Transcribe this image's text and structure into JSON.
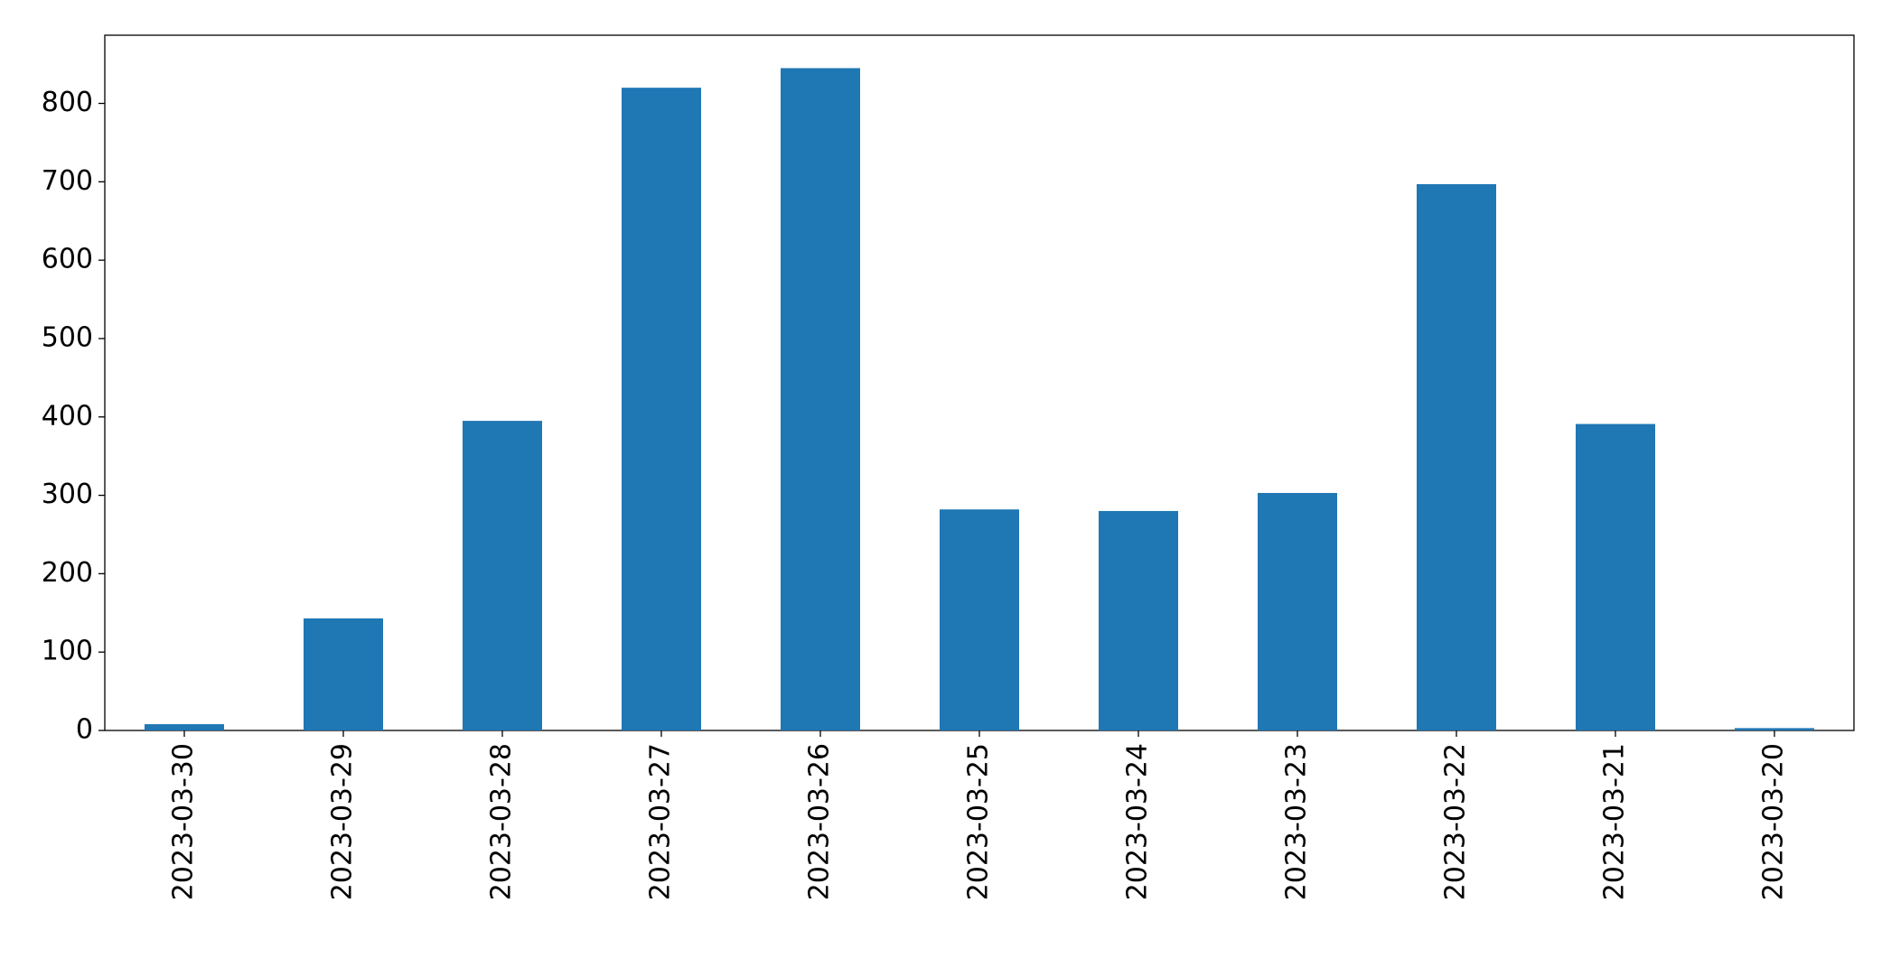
{
  "chart_data": {
    "type": "bar",
    "categories": [
      "2023-03-30",
      "2023-03-29",
      "2023-03-28",
      "2023-03-27",
      "2023-03-26",
      "2023-03-25",
      "2023-03-24",
      "2023-03-23",
      "2023-03-22",
      "2023-03-21",
      "2023-03-20"
    ],
    "values": [
      8,
      143,
      395,
      820,
      845,
      282,
      280,
      303,
      697,
      391,
      3
    ],
    "color": "#1f77b4",
    "ylim": [
      0,
      887
    ],
    "yticks": [
      0,
      100,
      200,
      300,
      400,
      500,
      600,
      700,
      800
    ],
    "grid": false
  }
}
